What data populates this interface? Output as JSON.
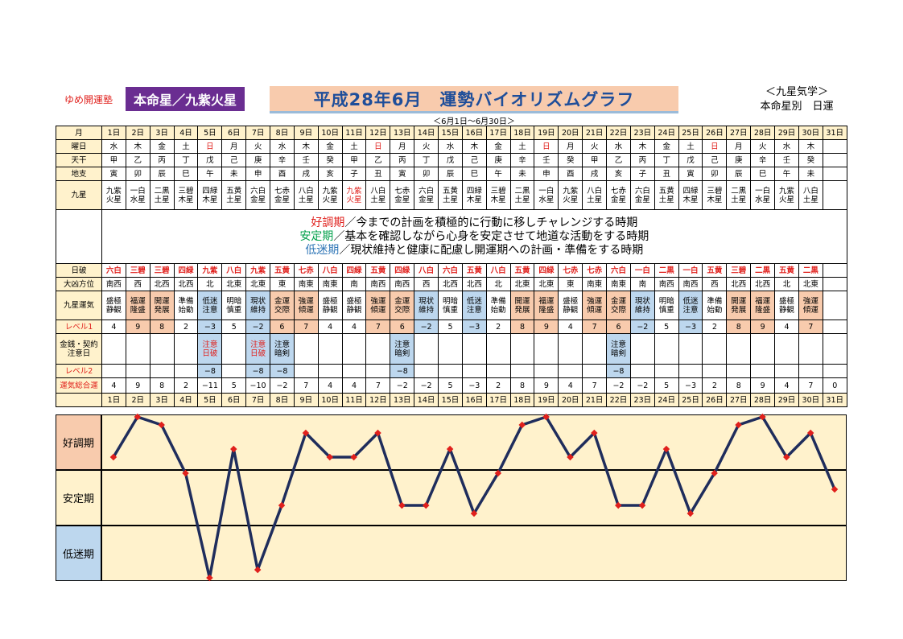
{
  "header": {
    "brand": "ゆめ開運塾",
    "honmei": "本命星／九紫火星",
    "title": "平成28年6月　運勢バイオリズムグラフ",
    "subtitle": "＜6月1日～6月30日＞",
    "right_title_1": "＜九星気学＞",
    "right_title_2": "本命星別　日運"
  },
  "labels": {
    "month": "月",
    "weekday": "曜日",
    "tenkan": "天干",
    "chishi": "地支",
    "kyusei": "九星",
    "nippa": "日破",
    "daikyo": "大凶方位",
    "unki": "九星運気",
    "level1": "レベル1",
    "kinsen": "金銭・契約注意日",
    "level2": "レベル2",
    "total": "運気総合運"
  },
  "days": [
    "1日",
    "2日",
    "3日",
    "4日",
    "5日",
    "6日",
    "7日",
    "8日",
    "9日",
    "10日",
    "11日",
    "12日",
    "13日",
    "14日",
    "15日",
    "16日",
    "17日",
    "18日",
    "19日",
    "20日",
    "21日",
    "22日",
    "23日",
    "24日",
    "25日",
    "26日",
    "27日",
    "28日",
    "29日",
    "30日",
    "31日"
  ],
  "weekday": [
    "水",
    "木",
    "金",
    "土",
    "日",
    "月",
    "火",
    "水",
    "木",
    "金",
    "土",
    "日",
    "月",
    "火",
    "水",
    "木",
    "金",
    "土",
    "日",
    "月",
    "火",
    "水",
    "木",
    "金",
    "土",
    "日",
    "月",
    "火",
    "水",
    "木",
    ""
  ],
  "weekday_red": [
    4,
    11,
    18,
    25
  ],
  "tenkan": [
    "甲",
    "乙",
    "丙",
    "丁",
    "戊",
    "己",
    "庚",
    "辛",
    "壬",
    "癸",
    "甲",
    "乙",
    "丙",
    "丁",
    "戊",
    "己",
    "庚",
    "辛",
    "壬",
    "癸",
    "甲",
    "乙",
    "丙",
    "丁",
    "戊",
    "己",
    "庚",
    "辛",
    "壬",
    "癸",
    ""
  ],
  "chishi": [
    "寅",
    "卯",
    "辰",
    "巳",
    "午",
    "未",
    "申",
    "酉",
    "戌",
    "亥",
    "子",
    "丑",
    "寅",
    "卯",
    "辰",
    "巳",
    "午",
    "未",
    "申",
    "酉",
    "戌",
    "亥",
    "子",
    "丑",
    "寅",
    "卯",
    "辰",
    "巳",
    "午",
    "未",
    ""
  ],
  "kyusei": [
    [
      "九紫",
      "火星"
    ],
    [
      "一白",
      "水星"
    ],
    [
      "二黒",
      "土星"
    ],
    [
      "三碧",
      "木星"
    ],
    [
      "四緑",
      "木星"
    ],
    [
      "五黄",
      "土星"
    ],
    [
      "六白",
      "金星"
    ],
    [
      "七赤",
      "金星"
    ],
    [
      "八白",
      "土星"
    ],
    [
      "九紫",
      "火星"
    ],
    [
      "九紫",
      "火星"
    ],
    [
      "八白",
      "土星"
    ],
    [
      "七赤",
      "金星"
    ],
    [
      "六白",
      "金星"
    ],
    [
      "五黄",
      "土星"
    ],
    [
      "四緑",
      "木星"
    ],
    [
      "三碧",
      "木星"
    ],
    [
      "二黒",
      "土星"
    ],
    [
      "一白",
      "水星"
    ],
    [
      "九紫",
      "火星"
    ],
    [
      "八白",
      "土星"
    ],
    [
      "七赤",
      "金星"
    ],
    [
      "六白",
      "金星"
    ],
    [
      "五黄",
      "土星"
    ],
    [
      "四緑",
      "木星"
    ],
    [
      "三碧",
      "木星"
    ],
    [
      "二黒",
      "土星"
    ],
    [
      "一白",
      "水星"
    ],
    [
      "九紫",
      "火星"
    ],
    [
      "八白",
      "土星"
    ],
    [
      "",
      ""
    ]
  ],
  "kyusei_red": [
    10
  ],
  "legend": {
    "good_label": "好調期",
    "good_text": "／今までの計画を積極的に行動に移しチャレンジする時期",
    "stable_label": "安定期",
    "stable_text": "／基本を確認しながら心身を安定させて地道な活動をする時期",
    "low_label": "低迷期",
    "low_text": "／現状維持と健康に配慮し開運期への計画・準備をする時期"
  },
  "nippa": [
    "六白",
    "三碧",
    "三碧",
    "四緑",
    "九紫",
    "八白",
    "九紫",
    "五黄",
    "七赤",
    "八白",
    "四緑",
    "五黄",
    "四緑",
    "八白",
    "六白",
    "五黄",
    "八白",
    "五黄",
    "四緑",
    "七赤",
    "七赤",
    "六白",
    "一白",
    "二黒",
    "一白",
    "五黄",
    "三碧",
    "二黒",
    "五黄",
    "二黒",
    ""
  ],
  "daikyo": [
    "南西",
    "西",
    "北西",
    "北西",
    "北",
    "北東",
    "北東",
    "東",
    "南東",
    "南東",
    "南",
    "南西",
    "南西",
    "西",
    "北西",
    "北西",
    "北",
    "北東",
    "北東",
    "東",
    "南東",
    "南東",
    "南",
    "南西",
    "南西",
    "西",
    "北西",
    "北西",
    "北",
    "北東",
    ""
  ],
  "unki": [
    [
      "盛極",
      "静観"
    ],
    [
      "福運",
      "隆盛"
    ],
    [
      "開運",
      "発展"
    ],
    [
      "準備",
      "始動"
    ],
    [
      "低迷",
      "注意"
    ],
    [
      "明暗",
      "慎重"
    ],
    [
      "現状",
      "維持"
    ],
    [
      "金運",
      "交際"
    ],
    [
      "強運",
      "傾運"
    ],
    [
      "盛極",
      "静観"
    ],
    [
      "盛極",
      "静観"
    ],
    [
      "強運",
      "傾運"
    ],
    [
      "金運",
      "交際"
    ],
    [
      "現状",
      "維持"
    ],
    [
      "明暗",
      "慎重"
    ],
    [
      "低迷",
      "注意"
    ],
    [
      "準備",
      "始動"
    ],
    [
      "開運",
      "発展"
    ],
    [
      "福運",
      "隆盛"
    ],
    [
      "盛極",
      "静観"
    ],
    [
      "強運",
      "傾運"
    ],
    [
      "金運",
      "交際"
    ],
    [
      "現状",
      "維持"
    ],
    [
      "明暗",
      "慎重"
    ],
    [
      "低迷",
      "注意"
    ],
    [
      "準備",
      "始動"
    ],
    [
      "開運",
      "発展"
    ],
    [
      "福運",
      "隆盛"
    ],
    [
      "盛極",
      "静観"
    ],
    [
      "強運",
      "傾運"
    ],
    [
      "",
      ""
    ]
  ],
  "level1": [
    "4",
    "9",
    "8",
    "2",
    "−3",
    "5",
    "−2",
    "6",
    "7",
    "4",
    "4",
    "7",
    "6",
    "−2",
    "5",
    "−3",
    "2",
    "8",
    "9",
    "4",
    "7",
    "6",
    "−2",
    "5",
    "−3",
    "2",
    "8",
    "9",
    "4",
    "7",
    ""
  ],
  "kinsen": [
    [
      "",
      ""
    ],
    [
      "",
      ""
    ],
    [
      "",
      ""
    ],
    [
      "",
      ""
    ],
    [
      "注意",
      "日破"
    ],
    [
      "",
      ""
    ],
    [
      "注意",
      "日破"
    ],
    [
      "注意",
      "暗剣"
    ],
    [
      "",
      ""
    ],
    [
      "",
      ""
    ],
    [
      "",
      ""
    ],
    [
      "",
      ""
    ],
    [
      "注意",
      "暗剣"
    ],
    [
      "",
      ""
    ],
    [
      "",
      ""
    ],
    [
      "",
      ""
    ],
    [
      "",
      ""
    ],
    [
      "",
      ""
    ],
    [
      "",
      ""
    ],
    [
      "",
      ""
    ],
    [
      "",
      ""
    ],
    [
      "注意",
      "暗剣"
    ],
    [
      "",
      ""
    ],
    [
      "",
      ""
    ],
    [
      "",
      ""
    ],
    [
      "",
      ""
    ],
    [
      "",
      ""
    ],
    [
      "",
      ""
    ],
    [
      "",
      ""
    ],
    [
      "",
      ""
    ],
    [
      "",
      ""
    ]
  ],
  "level2": [
    "",
    "",
    "",
    "",
    "−8",
    "",
    "−8",
    "−8",
    "",
    "",
    "",
    "",
    "−8",
    "",
    "",
    "",
    "",
    "",
    "",
    "",
    "",
    "−8",
    "",
    "",
    "",
    "",
    "",
    "",
    "",
    "",
    ""
  ],
  "total": [
    "4",
    "9",
    "8",
    "2",
    "−11",
    "5",
    "−10",
    "−2",
    "7",
    "4",
    "4",
    "7",
    "−2",
    "−2",
    "5",
    "−3",
    "2",
    "8",
    "9",
    "4",
    "7",
    "−2",
    "−2",
    "5",
    "−3",
    "2",
    "8",
    "9",
    "4",
    "7",
    "0"
  ],
  "zones": {
    "good": "好調期",
    "stable": "安定期",
    "low": "低迷期"
  },
  "colors": {
    "line": "#1f2d5c",
    "marker": "#e0201c",
    "zone": "#fff2cc",
    "pos": "#f8cbad",
    "neg": "#bdd7ee"
  },
  "chart_data": {
    "type": "line",
    "x": [
      "1日",
      "2日",
      "3日",
      "4日",
      "5日",
      "6日",
      "7日",
      "8日",
      "9日",
      "10日",
      "11日",
      "12日",
      "13日",
      "14日",
      "15日",
      "16日",
      "17日",
      "18日",
      "19日",
      "20日",
      "21日",
      "22日",
      "23日",
      "24日",
      "25日",
      "26日",
      "27日",
      "28日",
      "29日",
      "30日",
      "31日"
    ],
    "values": [
      4,
      9,
      8,
      2,
      -11,
      5,
      -10,
      -2,
      7,
      4,
      4,
      7,
      -2,
      -2,
      5,
      -3,
      2,
      8,
      9,
      4,
      7,
      -2,
      -2,
      5,
      -3,
      2,
      8,
      9,
      4,
      7,
      0
    ],
    "ylim": [
      -11,
      9
    ],
    "grid": true
  }
}
